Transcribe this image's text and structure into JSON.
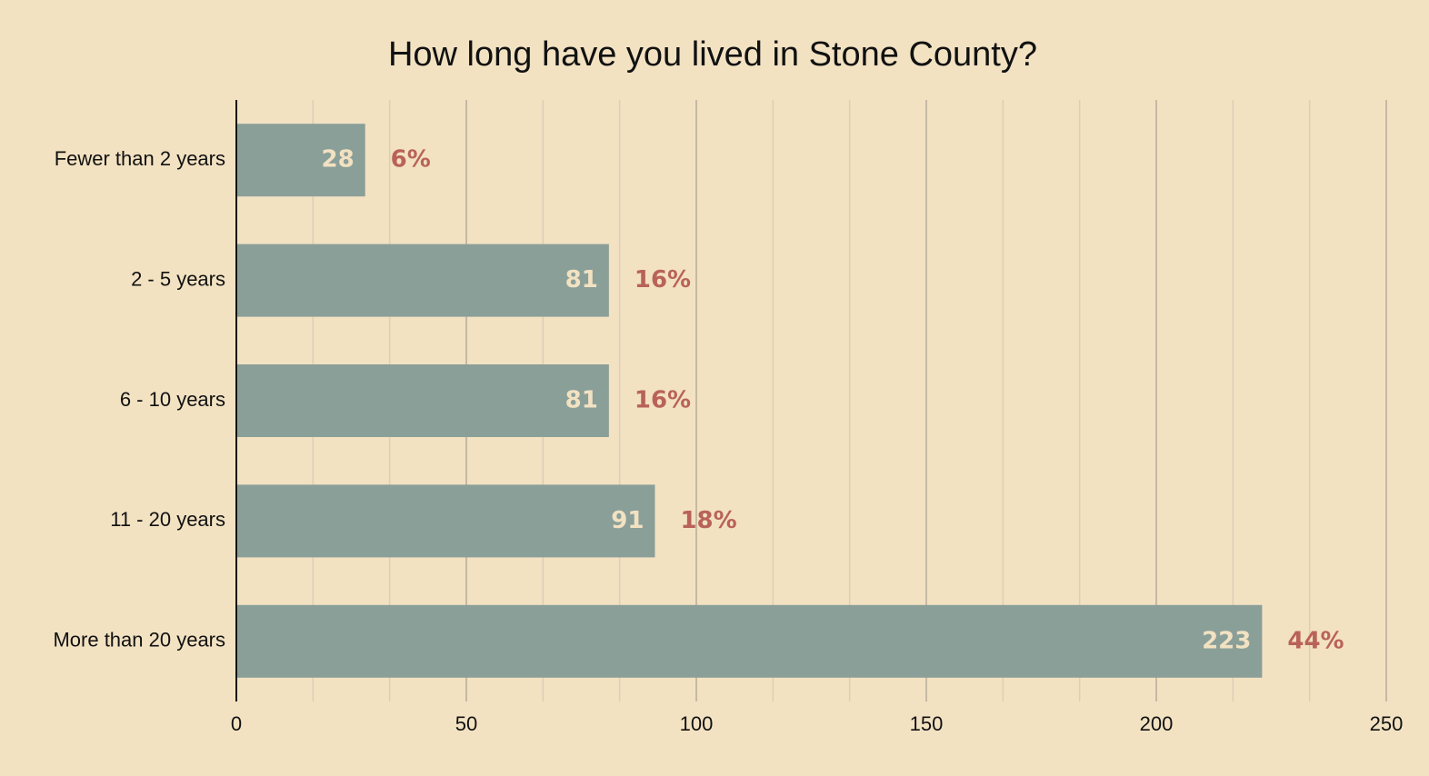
{
  "chart_data": {
    "type": "hbar",
    "title": "How long have you lived in Stone County?",
    "categories": [
      "Fewer than 2 years",
      "2 - 5 years",
      "6 - 10 years",
      "11 - 20 years",
      "More than 20 years"
    ],
    "values": [
      28,
      81,
      81,
      91,
      223
    ],
    "percent_labels": [
      "6%",
      "16%",
      "16%",
      "18%",
      "44%"
    ],
    "color": "#8b9f99",
    "xlim": [
      0,
      250
    ],
    "xticks": [
      0,
      50,
      100,
      150,
      200,
      250
    ],
    "grid": true,
    "minor_grid_divisions": 3
  }
}
